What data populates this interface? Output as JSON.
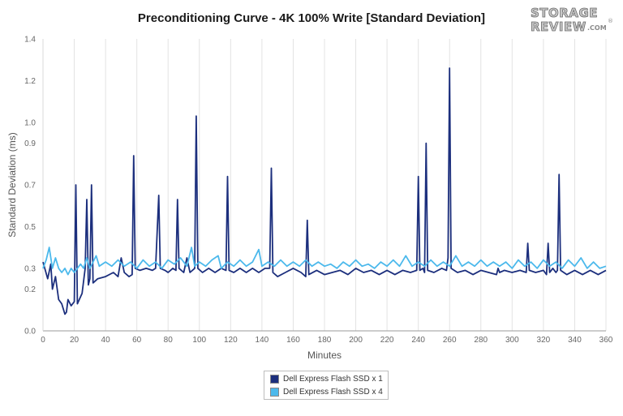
{
  "chart_data": {
    "type": "line",
    "title": "Preconditioning Curve - 4K 100% Write [Standard Deviation]",
    "xlabel": "Minutes",
    "ylabel": "Standard Deviation (ms)",
    "xlim": [
      0,
      360
    ],
    "ylim": [
      0,
      1.4
    ],
    "x_ticks": [
      0,
      20,
      40,
      60,
      80,
      100,
      120,
      140,
      160,
      180,
      200,
      220,
      240,
      260,
      280,
      300,
      320,
      340,
      360
    ],
    "y_ticks": [
      0,
      0.2,
      0.3,
      0.5,
      0.7,
      0.9,
      1.0,
      1.2,
      1.4
    ],
    "y_tick_labels": [
      "0.0",
      "0.2",
      "0.3",
      "0.5",
      "0.7",
      "0.9",
      "1.0",
      "1.2",
      "1.4"
    ],
    "grid": "vertical",
    "legend_position": "bottom",
    "series": [
      {
        "name": "Dell Express Flash SSD x 1",
        "color": "#1c2f7d",
        "points": [
          [
            0,
            0.33
          ],
          [
            3,
            0.25
          ],
          [
            5,
            0.32
          ],
          [
            6,
            0.2
          ],
          [
            8,
            0.26
          ],
          [
            10,
            0.15
          ],
          [
            12,
            0.13
          ],
          [
            14,
            0.08
          ],
          [
            15,
            0.09
          ],
          [
            16,
            0.15
          ],
          [
            18,
            0.12
          ],
          [
            20,
            0.14
          ],
          [
            21,
            0.7
          ],
          [
            22,
            0.13
          ],
          [
            25,
            0.18
          ],
          [
            27,
            0.3
          ],
          [
            28,
            0.63
          ],
          [
            29,
            0.22
          ],
          [
            30,
            0.25
          ],
          [
            31,
            0.7
          ],
          [
            32,
            0.23
          ],
          [
            35,
            0.25
          ],
          [
            40,
            0.26
          ],
          [
            45,
            0.28
          ],
          [
            48,
            0.26
          ],
          [
            50,
            0.35
          ],
          [
            52,
            0.28
          ],
          [
            55,
            0.26
          ],
          [
            57,
            0.27
          ],
          [
            58,
            0.84
          ],
          [
            59,
            0.3
          ],
          [
            62,
            0.29
          ],
          [
            66,
            0.3
          ],
          [
            70,
            0.29
          ],
          [
            72,
            0.3
          ],
          [
            74,
            0.65
          ],
          [
            75,
            0.3
          ],
          [
            78,
            0.29
          ],
          [
            80,
            0.28
          ],
          [
            83,
            0.3
          ],
          [
            85,
            0.29
          ],
          [
            86,
            0.63
          ],
          [
            87,
            0.3
          ],
          [
            90,
            0.28
          ],
          [
            92,
            0.35
          ],
          [
            94,
            0.28
          ],
          [
            97,
            0.3
          ],
          [
            98,
            1.03
          ],
          [
            99,
            0.3
          ],
          [
            102,
            0.28
          ],
          [
            106,
            0.3
          ],
          [
            110,
            0.28
          ],
          [
            114,
            0.3
          ],
          [
            117,
            0.29
          ],
          [
            118,
            0.74
          ],
          [
            119,
            0.29
          ],
          [
            122,
            0.28
          ],
          [
            126,
            0.3
          ],
          [
            130,
            0.28
          ],
          [
            134,
            0.3
          ],
          [
            138,
            0.28
          ],
          [
            142,
            0.3
          ],
          [
            145,
            0.3
          ],
          [
            146,
            0.78
          ],
          [
            147,
            0.28
          ],
          [
            150,
            0.26
          ],
          [
            155,
            0.28
          ],
          [
            160,
            0.3
          ],
          [
            165,
            0.28
          ],
          [
            168,
            0.26
          ],
          [
            169,
            0.53
          ],
          [
            170,
            0.27
          ],
          [
            175,
            0.29
          ],
          [
            180,
            0.27
          ],
          [
            185,
            0.28
          ],
          [
            190,
            0.29
          ],
          [
            195,
            0.27
          ],
          [
            200,
            0.3
          ],
          [
            205,
            0.28
          ],
          [
            210,
            0.29
          ],
          [
            215,
            0.27
          ],
          [
            220,
            0.29
          ],
          [
            225,
            0.27
          ],
          [
            230,
            0.29
          ],
          [
            235,
            0.28
          ],
          [
            239,
            0.29
          ],
          [
            240,
            0.74
          ],
          [
            241,
            0.29
          ],
          [
            243,
            0.3
          ],
          [
            244,
            0.28
          ],
          [
            245,
            0.9
          ],
          [
            246,
            0.29
          ],
          [
            250,
            0.28
          ],
          [
            255,
            0.3
          ],
          [
            258,
            0.29
          ],
          [
            259,
            0.35
          ],
          [
            260,
            1.26
          ],
          [
            261,
            0.3
          ],
          [
            265,
            0.28
          ],
          [
            270,
            0.29
          ],
          [
            275,
            0.27
          ],
          [
            280,
            0.29
          ],
          [
            285,
            0.28
          ],
          [
            290,
            0.27
          ],
          [
            291,
            0.3
          ],
          [
            292,
            0.28
          ],
          [
            295,
            0.29
          ],
          [
            300,
            0.28
          ],
          [
            305,
            0.29
          ],
          [
            309,
            0.28
          ],
          [
            310,
            0.42
          ],
          [
            311,
            0.29
          ],
          [
            315,
            0.28
          ],
          [
            320,
            0.29
          ],
          [
            322,
            0.27
          ],
          [
            323,
            0.42
          ],
          [
            324,
            0.28
          ],
          [
            326,
            0.3
          ],
          [
            328,
            0.28
          ],
          [
            329,
            0.29
          ],
          [
            330,
            0.75
          ],
          [
            331,
            0.29
          ],
          [
            335,
            0.27
          ],
          [
            340,
            0.29
          ],
          [
            345,
            0.27
          ],
          [
            350,
            0.29
          ],
          [
            355,
            0.27
          ],
          [
            360,
            0.29
          ]
        ]
      },
      {
        "name": "Dell Express Flash SSD x 4",
        "color": "#4cb9ec",
        "points": [
          [
            0,
            0.3
          ],
          [
            2,
            0.34
          ],
          [
            4,
            0.4
          ],
          [
            6,
            0.3
          ],
          [
            8,
            0.35
          ],
          [
            10,
            0.3
          ],
          [
            12,
            0.28
          ],
          [
            14,
            0.3
          ],
          [
            16,
            0.27
          ],
          [
            18,
            0.3
          ],
          [
            20,
            0.28
          ],
          [
            24,
            0.32
          ],
          [
            26,
            0.3
          ],
          [
            28,
            0.35
          ],
          [
            30,
            0.3
          ],
          [
            32,
            0.33
          ],
          [
            34,
            0.36
          ],
          [
            36,
            0.31
          ],
          [
            40,
            0.33
          ],
          [
            44,
            0.31
          ],
          [
            48,
            0.34
          ],
          [
            52,
            0.31
          ],
          [
            56,
            0.33
          ],
          [
            60,
            0.3
          ],
          [
            64,
            0.34
          ],
          [
            68,
            0.31
          ],
          [
            72,
            0.33
          ],
          [
            76,
            0.3
          ],
          [
            80,
            0.34
          ],
          [
            84,
            0.32
          ],
          [
            88,
            0.35
          ],
          [
            92,
            0.31
          ],
          [
            95,
            0.4
          ],
          [
            97,
            0.31
          ],
          [
            100,
            0.33
          ],
          [
            104,
            0.31
          ],
          [
            108,
            0.34
          ],
          [
            112,
            0.36
          ],
          [
            114,
            0.3
          ],
          [
            118,
            0.33
          ],
          [
            122,
            0.31
          ],
          [
            126,
            0.34
          ],
          [
            130,
            0.31
          ],
          [
            134,
            0.33
          ],
          [
            138,
            0.39
          ],
          [
            140,
            0.31
          ],
          [
            144,
            0.33
          ],
          [
            148,
            0.31
          ],
          [
            152,
            0.34
          ],
          [
            156,
            0.31
          ],
          [
            160,
            0.33
          ],
          [
            164,
            0.31
          ],
          [
            168,
            0.34
          ],
          [
            172,
            0.31
          ],
          [
            176,
            0.33
          ],
          [
            180,
            0.31
          ],
          [
            184,
            0.32
          ],
          [
            188,
            0.3
          ],
          [
            192,
            0.33
          ],
          [
            196,
            0.31
          ],
          [
            200,
            0.34
          ],
          [
            204,
            0.31
          ],
          [
            208,
            0.32
          ],
          [
            212,
            0.3
          ],
          [
            216,
            0.33
          ],
          [
            220,
            0.31
          ],
          [
            224,
            0.34
          ],
          [
            228,
            0.31
          ],
          [
            232,
            0.36
          ],
          [
            236,
            0.31
          ],
          [
            240,
            0.33
          ],
          [
            244,
            0.31
          ],
          [
            248,
            0.34
          ],
          [
            252,
            0.31
          ],
          [
            256,
            0.33
          ],
          [
            260,
            0.31
          ],
          [
            264,
            0.36
          ],
          [
            268,
            0.31
          ],
          [
            272,
            0.33
          ],
          [
            276,
            0.31
          ],
          [
            280,
            0.34
          ],
          [
            284,
            0.31
          ],
          [
            288,
            0.33
          ],
          [
            292,
            0.31
          ],
          [
            296,
            0.33
          ],
          [
            300,
            0.3
          ],
          [
            304,
            0.34
          ],
          [
            308,
            0.31
          ],
          [
            312,
            0.33
          ],
          [
            316,
            0.3
          ],
          [
            320,
            0.34
          ],
          [
            324,
            0.31
          ],
          [
            328,
            0.33
          ],
          [
            332,
            0.3
          ],
          [
            336,
            0.34
          ],
          [
            340,
            0.31
          ],
          [
            344,
            0.35
          ],
          [
            348,
            0.3
          ],
          [
            352,
            0.33
          ],
          [
            356,
            0.3
          ],
          [
            360,
            0.31
          ]
        ]
      }
    ]
  },
  "logo": {
    "line1": "STORAGE",
    "line2": "REVIEW",
    "suffix": ".COM",
    "mark": "®"
  }
}
